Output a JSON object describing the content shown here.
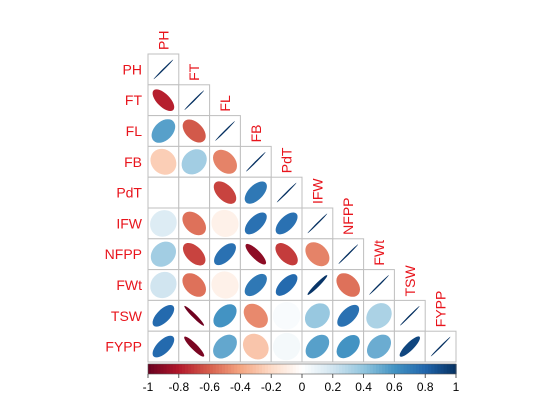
{
  "chart_data": {
    "type": "heatmap",
    "style": "correlation-ellipse-lower-triangle",
    "variables": [
      "PH",
      "FT",
      "FL",
      "FB",
      "PdT",
      "IFW",
      "NFPP",
      "FWt",
      "TSW",
      "FYPP"
    ],
    "matrix": [
      [
        1,
        null,
        null,
        null,
        null,
        null,
        null,
        null,
        null,
        null
      ],
      [
        -0.78,
        1,
        null,
        null,
        null,
        null,
        null,
        null,
        null,
        null
      ],
      [
        0.55,
        -0.62,
        1,
        null,
        null,
        null,
        null,
        null,
        null,
        null
      ],
      [
        -0.25,
        0.35,
        -0.5,
        1,
        null,
        null,
        null,
        null,
        null,
        null
      ],
      [
        0.0,
        0.0,
        -0.68,
        0.72,
        1,
        null,
        null,
        null,
        null,
        null
      ],
      [
        0.15,
        -0.55,
        -0.08,
        0.75,
        0.75,
        1,
        null,
        null,
        null,
        null
      ],
      [
        0.35,
        -0.68,
        0.75,
        -0.9,
        -0.7,
        -0.5,
        1,
        null,
        null,
        null
      ],
      [
        0.2,
        -0.55,
        -0.08,
        0.72,
        0.78,
        0.98,
        -0.55,
        1,
        null,
        null
      ],
      [
        0.78,
        -0.98,
        0.6,
        -0.48,
        0.03,
        0.38,
        0.75,
        0.32,
        1,
        null
      ],
      [
        0.78,
        -0.95,
        0.52,
        -0.28,
        0.05,
        0.55,
        0.6,
        0.5,
        0.92,
        1
      ]
    ],
    "colorbar": {
      "range": [
        -1,
        1
      ],
      "ticks": [
        "-1",
        "-0.8",
        "-0.6",
        "-0.4",
        "-0.2",
        "0",
        "0.2",
        "0.4",
        "0.6",
        "0.8",
        "1"
      ],
      "palette": [
        "#67001F",
        "#B2182B",
        "#D6604D",
        "#F4A582",
        "#FDDBC7",
        "#FFFFFF",
        "#D1E5F0",
        "#92C5DE",
        "#4393C3",
        "#2166AC",
        "#053061"
      ]
    },
    "label_color": "#E8141C",
    "grid": true
  }
}
